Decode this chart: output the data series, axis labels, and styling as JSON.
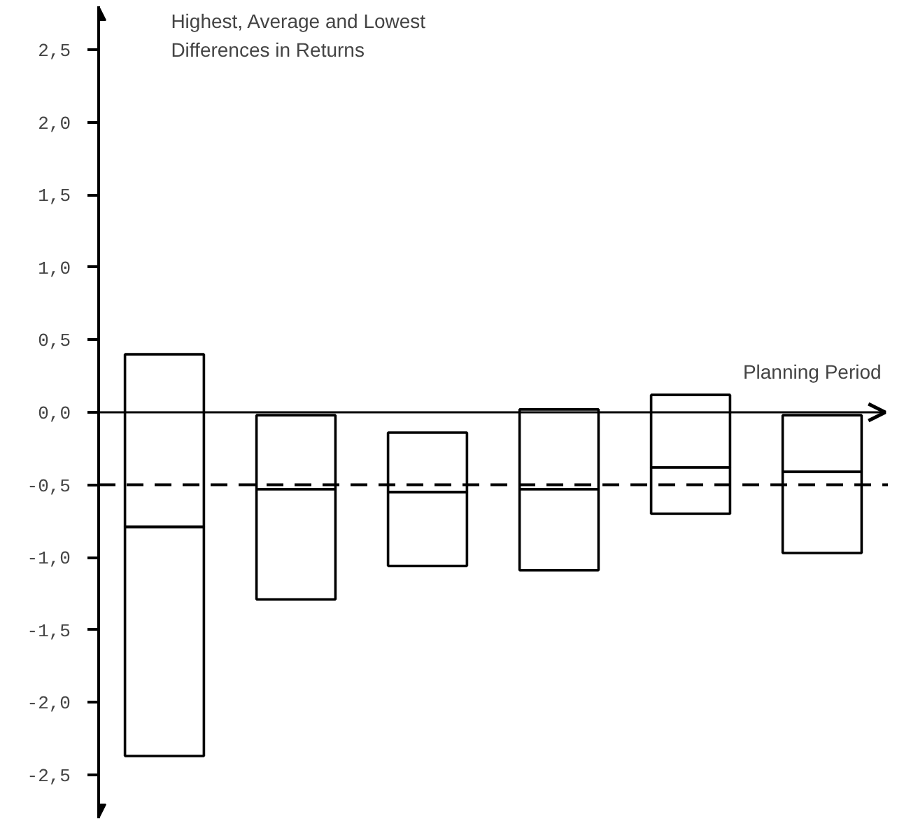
{
  "chart_data": {
    "type": "box",
    "ylabel": "Highest, Average and Lowest Differences in Returns",
    "xlabel": "Planning Period",
    "categories": [
      null,
      null,
      null,
      null,
      null,
      null
    ],
    "boxes": [
      {
        "low": -2.37,
        "q1": -2.37,
        "median": -0.79,
        "q3": 0.4,
        "high": 0.4
      },
      {
        "low": -1.29,
        "q1": -1.29,
        "median": -0.53,
        "q3": -0.02,
        "high": -0.02
      },
      {
        "low": -1.06,
        "q1": -1.06,
        "median": -0.55,
        "q3": -0.14,
        "high": -0.14
      },
      {
        "low": -1.09,
        "q1": -1.09,
        "median": -0.53,
        "q3": 0.02,
        "high": 0.02
      },
      {
        "low": -0.7,
        "q1": -0.7,
        "median": -0.38,
        "q3": 0.12,
        "high": 0.12
      },
      {
        "low": -0.97,
        "q1": -0.97,
        "median": -0.41,
        "q3": -0.02,
        "high": -0.02
      }
    ],
    "ylim": [
      -2.8,
      2.8
    ],
    "yticks": [
      {
        "value": -2.5,
        "label": "-2,5"
      },
      {
        "value": -2.0,
        "label": "-2,0"
      },
      {
        "value": -1.5,
        "label": "-1,5"
      },
      {
        "value": -1.0,
        "label": "-1,0"
      },
      {
        "value": -0.5,
        "label": "-0,5"
      },
      {
        "value": 0.0,
        "label": "0,0"
      },
      {
        "value": 0.5,
        "label": "0,5"
      },
      {
        "value": 1.0,
        "label": "1,0"
      },
      {
        "value": 1.5,
        "label": "1,5"
      },
      {
        "value": 2.0,
        "label": "2,0"
      },
      {
        "value": 2.5,
        "label": "2,5"
      }
    ],
    "ref_lines": [
      {
        "axis": "y",
        "value": -0.5,
        "line_style": "dashed",
        "color": "#000000"
      }
    ],
    "tick_labels": "y",
    "grid": false
  }
}
